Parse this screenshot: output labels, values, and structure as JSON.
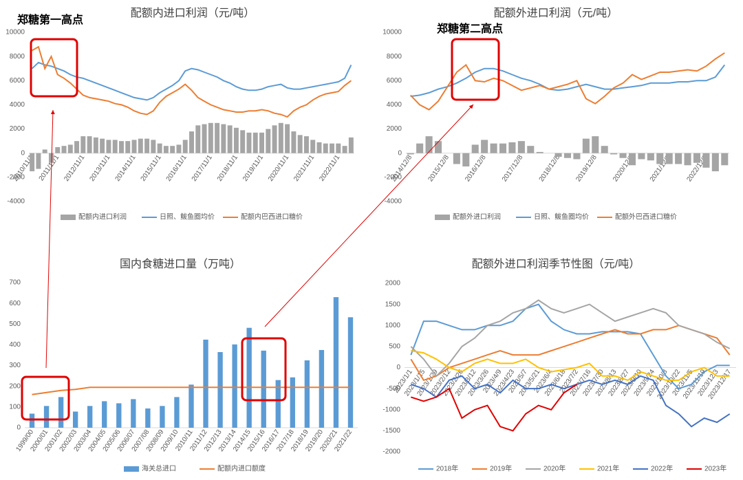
{
  "chart_data": [
    {
      "type": "combo",
      "title": "配额内进口利润（元/吨）",
      "annotations": [
        "郑糖第一高点"
      ],
      "categories": [
        "2010/11/1",
        null,
        null,
        null,
        "2011/11/1",
        null,
        null,
        null,
        "2012/11/1",
        null,
        null,
        null,
        "2013/11/1",
        null,
        null,
        null,
        "2014/11/1",
        null,
        null,
        null,
        "2015/11/1",
        null,
        null,
        null,
        "2016/11/1",
        null,
        null,
        null,
        "2017/11/1",
        null,
        null,
        null,
        "2018/11/1",
        null,
        null,
        null,
        "2019/11/1",
        null,
        null,
        null,
        "2020/11/1",
        null,
        null,
        null,
        "2021/11/1",
        null,
        null,
        null,
        "2022/11/1",
        null,
        null
      ],
      "series": [
        {
          "name": "配额内进口利润",
          "type": "bar",
          "color": "#a5a5a5",
          "values": [
            -1500,
            -1300,
            300,
            -800,
            500,
            600,
            700,
            1000,
            1400,
            1400,
            1300,
            1200,
            1100,
            1100,
            1000,
            1000,
            1100,
            1200,
            1200,
            1100,
            800,
            600,
            600,
            700,
            1100,
            1800,
            2300,
            2400,
            2500,
            2500,
            2400,
            2300,
            2100,
            1900,
            1700,
            1700,
            1700,
            2000,
            2300,
            2500,
            2400,
            1800,
            1500,
            1400,
            1100,
            900,
            800,
            800,
            800,
            600,
            1300
          ]
        },
        {
          "name": "日照、鲅鱼圈均价",
          "type": "line",
          "color": "#5b9bd5",
          "values": [
            7000,
            7500,
            7300,
            7200,
            7000,
            6800,
            6500,
            6300,
            6200,
            6000,
            5800,
            5600,
            5400,
            5200,
            5000,
            4800,
            4600,
            4500,
            4400,
            4600,
            5000,
            5300,
            5600,
            6000,
            6800,
            7000,
            6900,
            6700,
            6500,
            6300,
            6000,
            5800,
            5500,
            5300,
            5200,
            5200,
            5300,
            5500,
            5600,
            5700,
            5400,
            5300,
            5300,
            5400,
            5500,
            5600,
            5700,
            5800,
            5900,
            6200,
            7300
          ]
        },
        {
          "name": "配额内巴西进口糖价",
          "type": "line",
          "color": "#ed7d31",
          "values": [
            8500,
            8800,
            7000,
            8000,
            6500,
            6200,
            5800,
            5300,
            4800,
            4600,
            4500,
            4400,
            4300,
            4100,
            4000,
            3800,
            3500,
            3300,
            3200,
            3500,
            4200,
            4700,
            5000,
            5300,
            5700,
            5200,
            4600,
            4300,
            4000,
            3800,
            3600,
            3500,
            3400,
            3400,
            3500,
            3500,
            3600,
            3500,
            3300,
            3200,
            3000,
            3500,
            3800,
            4000,
            4400,
            4700,
            4900,
            5000,
            5100,
            5600,
            6000
          ]
        }
      ],
      "ylim": [
        -4000,
        10000
      ],
      "yticks": [
        -4000,
        -2000,
        0,
        2000,
        4000,
        6000,
        8000,
        10000
      ],
      "grid": false,
      "legend": "bottom"
    },
    {
      "type": "combo",
      "title": "配额外进口利润（元/吨）",
      "annotations": [
        "郑糖第二高点"
      ],
      "categories": [
        "2014/12/8",
        null,
        null,
        null,
        "2015/12/8",
        null,
        null,
        null,
        "2016/12/8",
        null,
        null,
        null,
        "2017/12/8",
        null,
        null,
        null,
        "2018/12/8",
        null,
        null,
        null,
        "2019/12/8",
        null,
        null,
        null,
        "2020/12/8",
        null,
        null,
        null,
        "2021/12/8",
        null,
        null,
        null,
        "2022/12/8",
        null,
        null
      ],
      "series": [
        {
          "name": "配额外进口利润",
          "type": "bar",
          "color": "#a5a5a5",
          "values": [
            -100,
            800,
            1400,
            1000,
            0,
            -900,
            -1100,
            700,
            1100,
            800,
            800,
            900,
            1000,
            600,
            100,
            0,
            -300,
            -400,
            -500,
            1200,
            1400,
            600,
            -100,
            -400,
            -1000,
            -500,
            -600,
            -900,
            -900,
            -900,
            -1000,
            -800,
            -1200,
            -1500,
            -1000
          ]
        },
        {
          "name": "日照、鲅鱼圈均价",
          "type": "line",
          "color": "#5b9bd5",
          "values": [
            4700,
            4800,
            5000,
            5300,
            5500,
            5800,
            6200,
            6700,
            7000,
            7000,
            6800,
            6500,
            6200,
            6000,
            5700,
            5300,
            5200,
            5300,
            5500,
            5700,
            5500,
            5300,
            5300,
            5400,
            5500,
            5600,
            5800,
            5800,
            5800,
            5900,
            5900,
            6000,
            6000,
            6300,
            7300
          ]
        },
        {
          "name": "配额外巴西进口糖价",
          "type": "line",
          "color": "#ed7d31",
          "values": [
            4800,
            4000,
            3600,
            4300,
            5500,
            6700,
            7300,
            6000,
            5900,
            6200,
            6000,
            5600,
            5200,
            5400,
            5600,
            5300,
            5500,
            5700,
            6000,
            4500,
            4100,
            4700,
            5400,
            5800,
            6500,
            6100,
            6400,
            6700,
            6700,
            6800,
            6900,
            6800,
            7200,
            7800,
            8300
          ]
        }
      ],
      "ylim": [
        -4000,
        10000
      ],
      "yticks": [
        -4000,
        -2000,
        0,
        2000,
        4000,
        6000,
        8000,
        10000
      ],
      "grid": false,
      "legend": "bottom"
    },
    {
      "type": "combo",
      "title": "国内食糖进口量（万吨）",
      "categories": [
        "1999/00",
        "2000/01",
        "2001/02",
        "2002/03",
        "2003/04",
        "2004/05",
        "2005/06",
        "2006/07",
        "2007/08",
        "2008/09",
        "2009/10",
        "2010/11",
        "2011/12",
        "2012/13",
        "2013/14",
        "2014/15",
        "2015/16",
        "2016/17",
        "2017/18",
        "2018/19",
        "2019/20",
        "2020/21",
        "2021/22"
      ],
      "series": [
        {
          "name": "海关总进口",
          "type": "bar",
          "color": "#5b9bd5",
          "values": [
            68,
            105,
            148,
            78,
            105,
            128,
            118,
            138,
            93,
            105,
            148,
            208,
            425,
            365,
            402,
            482,
            372,
            230,
            243,
            325,
            375,
            630,
            533
          ]
        },
        {
          "name": "配额内进口额度",
          "type": "line",
          "color": "#ed7d31",
          "values": [
            160,
            170,
            180,
            185,
            195,
            195,
            195,
            195,
            195,
            195,
            195,
            195,
            195,
            195,
            195,
            195,
            195,
            195,
            195,
            195,
            195,
            195,
            195
          ]
        }
      ],
      "ylim": [
        0,
        700
      ],
      "yticks": [
        0,
        100,
        200,
        300,
        400,
        500,
        600,
        700
      ],
      "grid": false,
      "legend": "bottom"
    },
    {
      "type": "line",
      "title": "配额外进口利润季节性图（元/吨）",
      "categories": [
        "2023/1/1",
        "2023/1/15",
        "2023/1/29",
        "2023/2/12",
        "2023/2/26",
        "2023/3/12",
        "2023/3/26",
        "2023/4/9",
        "2023/4/23",
        "2023/5/7",
        "2023/5/21",
        "2023/6/4",
        "2023/6/18",
        "2023/7/2",
        "2023/7/16",
        "2023/7/30",
        "2023/8/13",
        "2023/8/27",
        "2023/9/10",
        "2023/9/24",
        "2023/10/8",
        "2023/10/22",
        "2023/11/5",
        "2023/11/19",
        "2023/12/3",
        "2023/12/17"
      ],
      "series": [
        {
          "name": "2018年",
          "color": "#5b9bd5",
          "values": [
            300,
            1100,
            1100,
            1000,
            900,
            900,
            1000,
            1000,
            1100,
            1400,
            1500,
            1100,
            900,
            800,
            800,
            850,
            850,
            850,
            800,
            300,
            -200,
            -500,
            -400,
            -100,
            50,
            50
          ]
        },
        {
          "name": "2019年",
          "color": "#ed7d31",
          "values": [
            200,
            -300,
            -200,
            0,
            100,
            200,
            300,
            400,
            300,
            300,
            300,
            400,
            500,
            600,
            700,
            800,
            900,
            800,
            800,
            900,
            900,
            1000,
            900,
            800,
            700,
            300
          ]
        },
        {
          "name": "2020年",
          "color": "#a5a5a5",
          "values": [
            500,
            200,
            -200,
            100,
            500,
            700,
            1000,
            1100,
            1300,
            1400,
            1600,
            1400,
            1300,
            1400,
            1500,
            1300,
            1100,
            1200,
            1300,
            1400,
            1300,
            1000,
            900,
            800,
            600,
            450
          ]
        },
        {
          "name": "2021年",
          "color": "#ffc000",
          "values": [
            400,
            350,
            200,
            0,
            -100,
            100,
            200,
            100,
            100,
            200,
            0,
            -100,
            -50,
            0,
            100,
            -200,
            -200,
            -300,
            -100,
            -200,
            -300,
            -300,
            -100,
            0,
            -200,
            -200
          ]
        },
        {
          "name": "2022年",
          "color": "#4472c4",
          "values": [
            -400,
            -500,
            -700,
            -300,
            -200,
            -500,
            -400,
            -600,
            -300,
            -500,
            -500,
            -400,
            -500,
            -400,
            -300,
            -400,
            -300,
            -400,
            -200,
            -300,
            -900,
            -1100,
            -1400,
            -1200,
            -1300,
            -1100
          ]
        },
        {
          "name": "2023年",
          "color": "#e00000",
          "values": [
            -700,
            -800,
            -700,
            -500,
            -1200,
            -1000,
            -900,
            -1400,
            -1500,
            -1100,
            -900,
            -1000,
            -600,
            -400,
            null,
            null,
            null,
            null,
            null,
            null,
            null,
            null,
            null,
            null,
            null,
            null
          ]
        }
      ],
      "ylim": [
        -2000,
        2000
      ],
      "yticks": [
        -2000,
        -1500,
        -1000,
        -500,
        0,
        500,
        1000,
        1500,
        2000
      ],
      "grid": false,
      "legend": "bottom"
    }
  ]
}
